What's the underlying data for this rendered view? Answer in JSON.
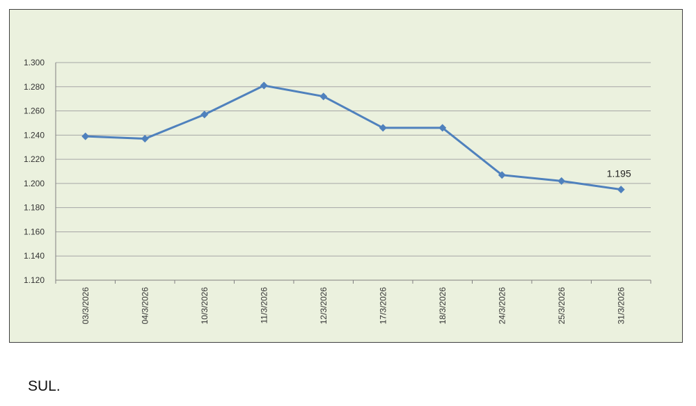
{
  "chart_data": {
    "type": "line",
    "title": "",
    "xlabel": "",
    "ylabel": "",
    "categories": [
      "03/3/2026",
      "04/3/2026",
      "10/3/2026",
      "11/3/2026",
      "12/3/2026",
      "17/3/2026",
      "18/3/2026",
      "24/3/2026",
      "25/3/2026",
      "31/3/2026"
    ],
    "series": [
      {
        "values": [
          1.239,
          1.237,
          1.257,
          1.281,
          1.272,
          1.246,
          1.246,
          1.207,
          1.202,
          1.195
        ]
      }
    ],
    "y_ticks": [
      "1.120",
      "1.140",
      "1.160",
      "1.180",
      "1.200",
      "1.220",
      "1.240",
      "1.260",
      "1.280",
      "1.300"
    ],
    "ylim": [
      1.12,
      1.3
    ],
    "grid": true,
    "legend": "none",
    "data_label": {
      "index": 9,
      "text": "1.195"
    },
    "colors": {
      "background": "#ebf1de",
      "line": "#4f81bd",
      "grid": "#a6a6a6",
      "axis": "#808080",
      "frame": "#3f3f3f"
    }
  },
  "footer": {
    "text": "SUL."
  }
}
